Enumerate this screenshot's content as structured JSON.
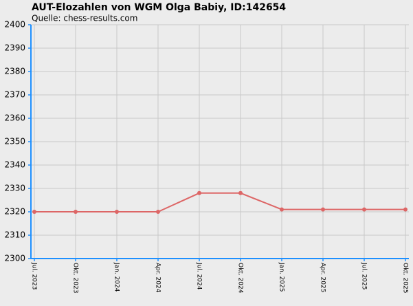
{
  "chart_data": {
    "type": "line",
    "title": "AUT-Elozahlen von WGM Olga Babiy, ID:142654",
    "subtitle": "Quelle: chess-results.com",
    "categories": [
      "Jul. 2023",
      "Okt. 2023",
      "Jan. 2024",
      "Apr. 2024",
      "Jul. 2024",
      "Okt. 2024",
      "Jan. 2025",
      "Apr. 2025",
      "Jul. 2025",
      "Okt. 2025"
    ],
    "values": [
      2320,
      2320,
      2320,
      2320,
      2328,
      2328,
      2321,
      2321,
      2321,
      2321
    ],
    "color": "#dd6666",
    "ylim": [
      2300,
      2400
    ],
    "yticks": [
      2300,
      2310,
      2320,
      2330,
      2340,
      2350,
      2360,
      2370,
      2380,
      2390,
      2400
    ],
    "grid": true
  }
}
